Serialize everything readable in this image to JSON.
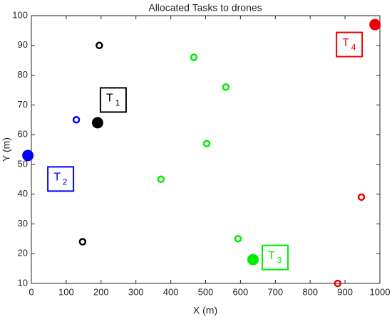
{
  "chart_data": {
    "type": "scatter",
    "title": "Allocated Tasks to drones",
    "x_label": "X (m)",
    "y_label": "Y (m)",
    "xlim": [
      0,
      1000
    ],
    "xticks": [
      0,
      100,
      200,
      300,
      400,
      500,
      600,
      700,
      800,
      900,
      1000
    ],
    "ylim": [
      10,
      100
    ],
    "yticks": [
      10,
      20,
      30,
      40,
      50,
      60,
      70,
      80,
      90,
      100
    ],
    "series": [
      {
        "color": "#000000",
        "x": [
          190,
          195,
          147
        ],
        "values": [
          64,
          90,
          24
        ]
      },
      {
        "color": "#0000ff",
        "x": [
          -10,
          129
        ],
        "values": [
          53,
          65
        ]
      },
      {
        "color": "#00ee00",
        "x": [
          636,
          466,
          558,
          503,
          372,
          593
        ],
        "values": [
          18,
          86,
          76,
          57,
          45,
          25
        ]
      },
      {
        "color": "#ee0000",
        "x": [
          986,
          947,
          879
        ],
        "values": [
          97,
          39,
          10
        ]
      }
    ],
    "annotations": [
      {
        "text": "T",
        "sub": "1"
      },
      {
        "text": "T",
        "sub": "2"
      },
      {
        "text": "T",
        "sub": "3"
      },
      {
        "text": "T",
        "sub": "4"
      }
    ]
  }
}
